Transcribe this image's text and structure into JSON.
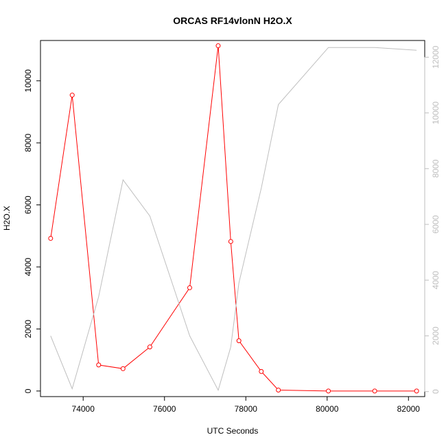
{
  "chart_data": {
    "type": "line",
    "title": "ORCAS RF14vlonN H2O.X",
    "xlabel": "UTC Seconds",
    "ylabel": "H2O.X",
    "xlim": [
      72950,
      82400
    ],
    "ylim": [
      -180,
      11300
    ],
    "y2lim": [
      -180,
      12600
    ],
    "x_ticks": [
      74000,
      76000,
      78000,
      80000,
      82000
    ],
    "y_ticks": [
      0,
      2000,
      4000,
      6000,
      8000,
      10000
    ],
    "y2_ticks": [
      0,
      2000,
      4000,
      6000,
      8000,
      10000,
      12000
    ],
    "colors": {
      "primary": "#ff0000",
      "secondary": "#bebebe"
    },
    "series": [
      {
        "axis": "left",
        "style": "line+points",
        "x": [
          73200,
          73730,
          74380,
          74980,
          75640,
          76620,
          77320,
          77630,
          77830,
          78380,
          78800,
          80030,
          81170,
          82200
        ],
        "y": [
          4920,
          9540,
          840,
          720,
          1420,
          3330,
          11130,
          4820,
          1620,
          630,
          30,
          0,
          0,
          0
        ]
      },
      {
        "axis": "right",
        "style": "line",
        "x": [
          73200,
          73730,
          74380,
          74980,
          75640,
          76620,
          77320,
          77630,
          77830,
          78380,
          78800,
          80030,
          81170,
          82200
        ],
        "y": [
          2000,
          100,
          3400,
          7600,
          6300,
          2000,
          50,
          1600,
          3900,
          7300,
          10300,
          12350,
          12350,
          12250
        ]
      }
    ]
  }
}
